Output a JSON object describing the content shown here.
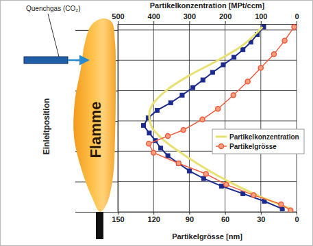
{
  "chart_data": {
    "type": "line",
    "xlabel": "Partikelkonzentration [MPt/ccm]",
    "x2label": "Partikelgrösse [nm]",
    "ylabel": "Einleitposition",
    "xlim": [
      500,
      0
    ],
    "xticks": [
      500,
      400,
      300,
      200,
      100,
      0
    ],
    "x2lim": [
      150,
      0
    ],
    "x2ticks": [
      150,
      120,
      90,
      60,
      30,
      0
    ],
    "ylim": [
      0,
      6.2
    ],
    "yticks": [
      0,
      1,
      2,
      3,
      4,
      5,
      6
    ],
    "tick_labels": "x",
    "grid": true,
    "legend": "right",
    "annotations": [
      {
        "text": "Quenchgas (CO₂)"
      },
      {
        "text": "Flamme"
      }
    ],
    "series": [
      {
        "color": "#1c2a8e",
        "marker": "square",
        "line_style": "solid",
        "x": [
          92,
          110,
          128,
          150,
          175,
          205,
          235,
          262,
          290,
          320,
          352,
          390,
          415,
          428,
          412,
          395,
          380,
          360,
          330,
          300,
          260,
          210,
          150,
          90,
          40
        ],
        "y": [
          6.1,
          5.85,
          5.6,
          5.35,
          5.1,
          4.85,
          4.6,
          4.35,
          4.1,
          3.85,
          3.6,
          3.35,
          3.1,
          2.85,
          2.6,
          2.35,
          2.1,
          1.85,
          1.6,
          1.35,
          1.1,
          0.85,
          0.6,
          0.35,
          0.1
        ]
      },
      {
        "name": "Partikelkonzentration",
        "color": "#e8e070",
        "marker": "none",
        "line_style": "solid",
        "x": [
          95,
          150,
          220,
          300,
          365,
          405,
          412,
          405,
          375,
          330,
          265,
          190,
          120,
          60,
          15
        ],
        "y": [
          6.1,
          5.5,
          5.0,
          4.5,
          4.0,
          3.5,
          3.2,
          2.8,
          2.4,
          2.0,
          1.5,
          1.0,
          0.6,
          0.3,
          0.1
        ]
      },
      {
        "name": "Partikelgrösse",
        "color": "#f05a3c",
        "marker": "circle",
        "line_style": "solid",
        "axis": "x2",
        "x": [
          2,
          10,
          19,
          30,
          41,
          53,
          66,
          79,
          95,
          108,
          124,
          120,
          99,
          76,
          59,
          36,
          13,
          5
        ],
        "y": [
          6.1,
          5.65,
          5.2,
          4.75,
          4.3,
          3.85,
          3.4,
          3.05,
          2.7,
          2.5,
          2.25,
          1.95,
          1.6,
          1.25,
          0.9,
          0.55,
          0.25,
          0.05
        ]
      }
    ]
  }
}
